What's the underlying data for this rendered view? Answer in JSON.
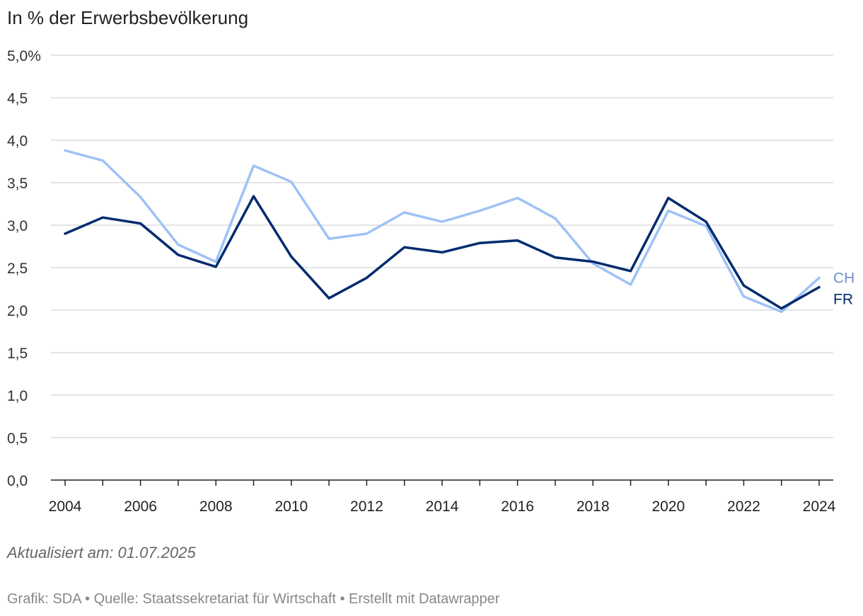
{
  "chart_data": {
    "type": "line",
    "title": "In % der Erwerbsbevölkerung",
    "x": [
      2004,
      2005,
      2006,
      2007,
      2008,
      2009,
      2010,
      2011,
      2012,
      2013,
      2014,
      2015,
      2016,
      2017,
      2018,
      2019,
      2020,
      2021,
      2022,
      2023,
      2024
    ],
    "x_tick_labels": [
      "2004",
      "2006",
      "2008",
      "2010",
      "2012",
      "2014",
      "2016",
      "2018",
      "2020",
      "2022",
      "2024"
    ],
    "y_tick_labels": [
      "0,0",
      "0,5",
      "1,0",
      "1,5",
      "2,0",
      "2,5",
      "3,0",
      "3,5",
      "4,0",
      "4,5",
      "5,0%"
    ],
    "ylim": [
      0,
      5
    ],
    "series": [
      {
        "name": "CH",
        "color": "#9ec2f5",
        "label_color": "#6f93c6",
        "values": [
          3.88,
          3.76,
          3.33,
          2.77,
          2.57,
          3.7,
          3.51,
          2.84,
          2.9,
          3.15,
          3.04,
          3.17,
          3.32,
          3.08,
          2.55,
          2.3,
          3.17,
          2.99,
          2.16,
          1.98,
          2.38
        ]
      },
      {
        "name": "FR",
        "color": "#002b6e",
        "label_color": "#002b6e",
        "values": [
          2.9,
          3.09,
          3.02,
          2.65,
          2.51,
          3.34,
          2.63,
          2.14,
          2.38,
          2.74,
          2.68,
          2.79,
          2.82,
          2.62,
          2.57,
          2.46,
          3.32,
          3.04,
          2.29,
          2.02,
          2.27
        ]
      }
    ],
    "xlabel": "",
    "ylabel": ""
  },
  "note": "Aktualisiert am: 01.07.2025",
  "footer": "Grafik: SDA • Quelle: Staatssekretariat für Wirtschaft • Erstellt mit Datawrapper"
}
